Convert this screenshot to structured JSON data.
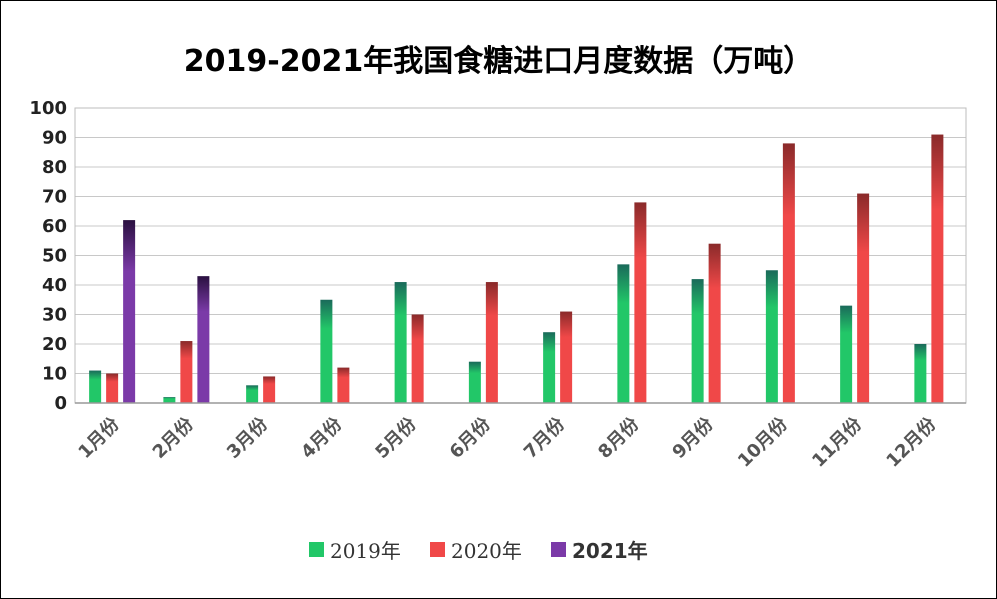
{
  "chart_data": {
    "type": "bar",
    "title": "2019-2021年我国食糖进口月度数据（万吨）",
    "xlabel": "",
    "ylabel": "",
    "ylim": [
      0,
      100
    ],
    "yticks": [
      0,
      10,
      20,
      30,
      40,
      50,
      60,
      70,
      80,
      90,
      100
    ],
    "grid": true,
    "legend_position": "bottom",
    "categories": [
      "1月份",
      "2月份",
      "3月份",
      "4月份",
      "5月份",
      "6月份",
      "7月份",
      "8月份",
      "9月份",
      "10月份",
      "11月份",
      "12月份"
    ],
    "series": [
      {
        "name": "2019年",
        "color": "#22c768",
        "dark": "#1a6a5a",
        "values": [
          11,
          2,
          6,
          35,
          41,
          14,
          24,
          47,
          42,
          45,
          33,
          20
        ]
      },
      {
        "name": "2020年",
        "color": "#f04848",
        "dark": "#8a2a2a",
        "values": [
          10,
          21,
          9,
          12,
          30,
          41,
          31,
          68,
          54,
          88,
          71,
          91
        ]
      },
      {
        "name": "2021年",
        "color": "#7b3aa8",
        "dark": "#2a1040",
        "values": [
          62,
          43,
          null,
          null,
          null,
          null,
          null,
          null,
          null,
          null,
          null,
          null
        ]
      }
    ]
  }
}
